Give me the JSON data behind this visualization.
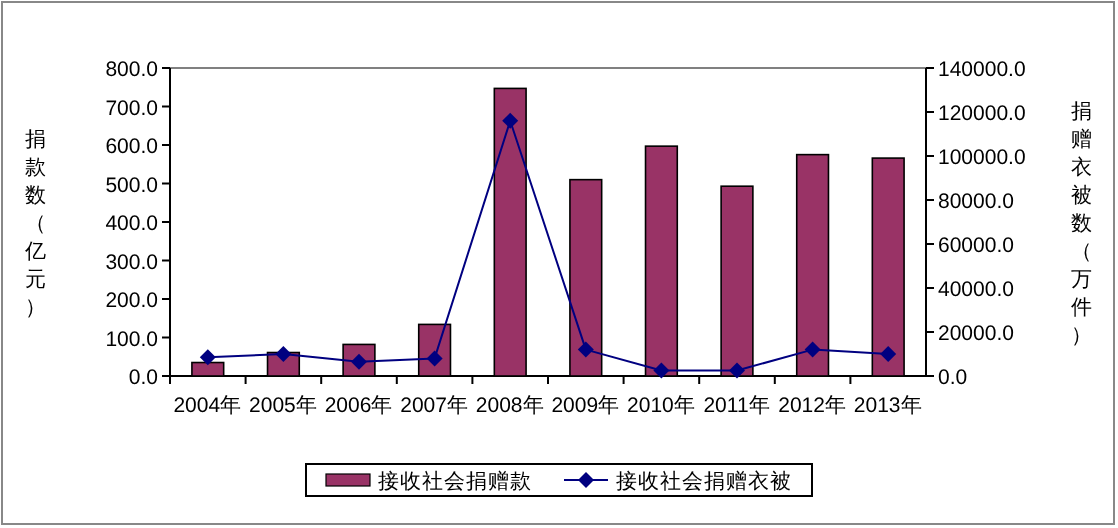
{
  "chart_data": {
    "type": "bar",
    "ylabel": "捐款数（亿元）",
    "y2label": "捐赠衣被数（万件）",
    "categories": [
      "2004年",
      "2005年",
      "2006年",
      "2007年",
      "2008年",
      "2009年",
      "2010年",
      "2011年",
      "2012年",
      "2013年"
    ],
    "series": [
      {
        "name": "接收社会捐赠款",
        "color": "#993366",
        "values": [
          35,
          61,
          82,
          134,
          747,
          510,
          597,
          493,
          575,
          566
        ]
      },
      {
        "name": "接收社会捐赠衣被",
        "type": "line",
        "axis": "y2",
        "color": "#000080",
        "marker": "diamond",
        "values": [
          8500,
          10000,
          6500,
          8000,
          116000,
          12000,
          2500,
          2500,
          12000,
          10000
        ]
      }
    ],
    "ylim": [
      0,
      800
    ],
    "yticks": [
      {
        "value": 0,
        "label": "0.0"
      },
      {
        "value": 100,
        "label": "100.0"
      },
      {
        "value": 200,
        "label": "200.0"
      },
      {
        "value": 300,
        "label": "300.0"
      },
      {
        "value": 400,
        "label": "400.0"
      },
      {
        "value": 500,
        "label": "500.0"
      },
      {
        "value": 600,
        "label": "600.0"
      },
      {
        "value": 700,
        "label": "700.0"
      },
      {
        "value": 800,
        "label": "800.0"
      }
    ],
    "y2lim": [
      0,
      140000
    ],
    "y2ticks": [
      {
        "value": 0,
        "label": "0.0"
      },
      {
        "value": 20000,
        "label": "20000.0"
      },
      {
        "value": 40000,
        "label": "40000.0"
      },
      {
        "value": 60000,
        "label": "60000.0"
      },
      {
        "value": 80000,
        "label": "80000.0"
      },
      {
        "value": 100000,
        "label": "100000.0"
      },
      {
        "value": 120000,
        "label": "120000.0"
      },
      {
        "value": 140000,
        "label": "140000.0"
      }
    ],
    "grid": false,
    "legend": "bottom"
  }
}
